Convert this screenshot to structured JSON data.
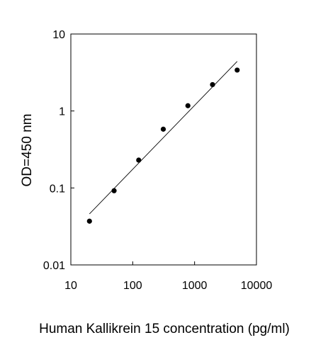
{
  "chart_data": {
    "type": "scatter",
    "title": "",
    "xlabel": "Human Kallikrein 15 concentration (pg/ml)",
    "ylabel": "OD=450 nm",
    "x_scale": "log",
    "y_scale": "log",
    "xlim": [
      10,
      10000
    ],
    "ylim": [
      0.01,
      10
    ],
    "x_ticks": [
      "10",
      "100",
      "1000",
      "10000"
    ],
    "y_ticks": [
      "0.01",
      "0.1",
      "1",
      "10"
    ],
    "grid": false,
    "legend": "none",
    "series": [
      {
        "points": [
          {
            "x": 20,
            "y": 0.037
          },
          {
            "x": 50,
            "y": 0.092
          },
          {
            "x": 125,
            "y": 0.23
          },
          {
            "x": 312,
            "y": 0.58
          },
          {
            "x": 780,
            "y": 1.17
          },
          {
            "x": 1950,
            "y": 2.2
          },
          {
            "x": 4880,
            "y": 3.4
          }
        ]
      }
    ],
    "fit_line": {
      "x": [
        20,
        4880
      ],
      "y": [
        0.046,
        4.4
      ]
    },
    "colors": {
      "points": "#000000",
      "line": "#000000",
      "axes": "#000000"
    }
  }
}
